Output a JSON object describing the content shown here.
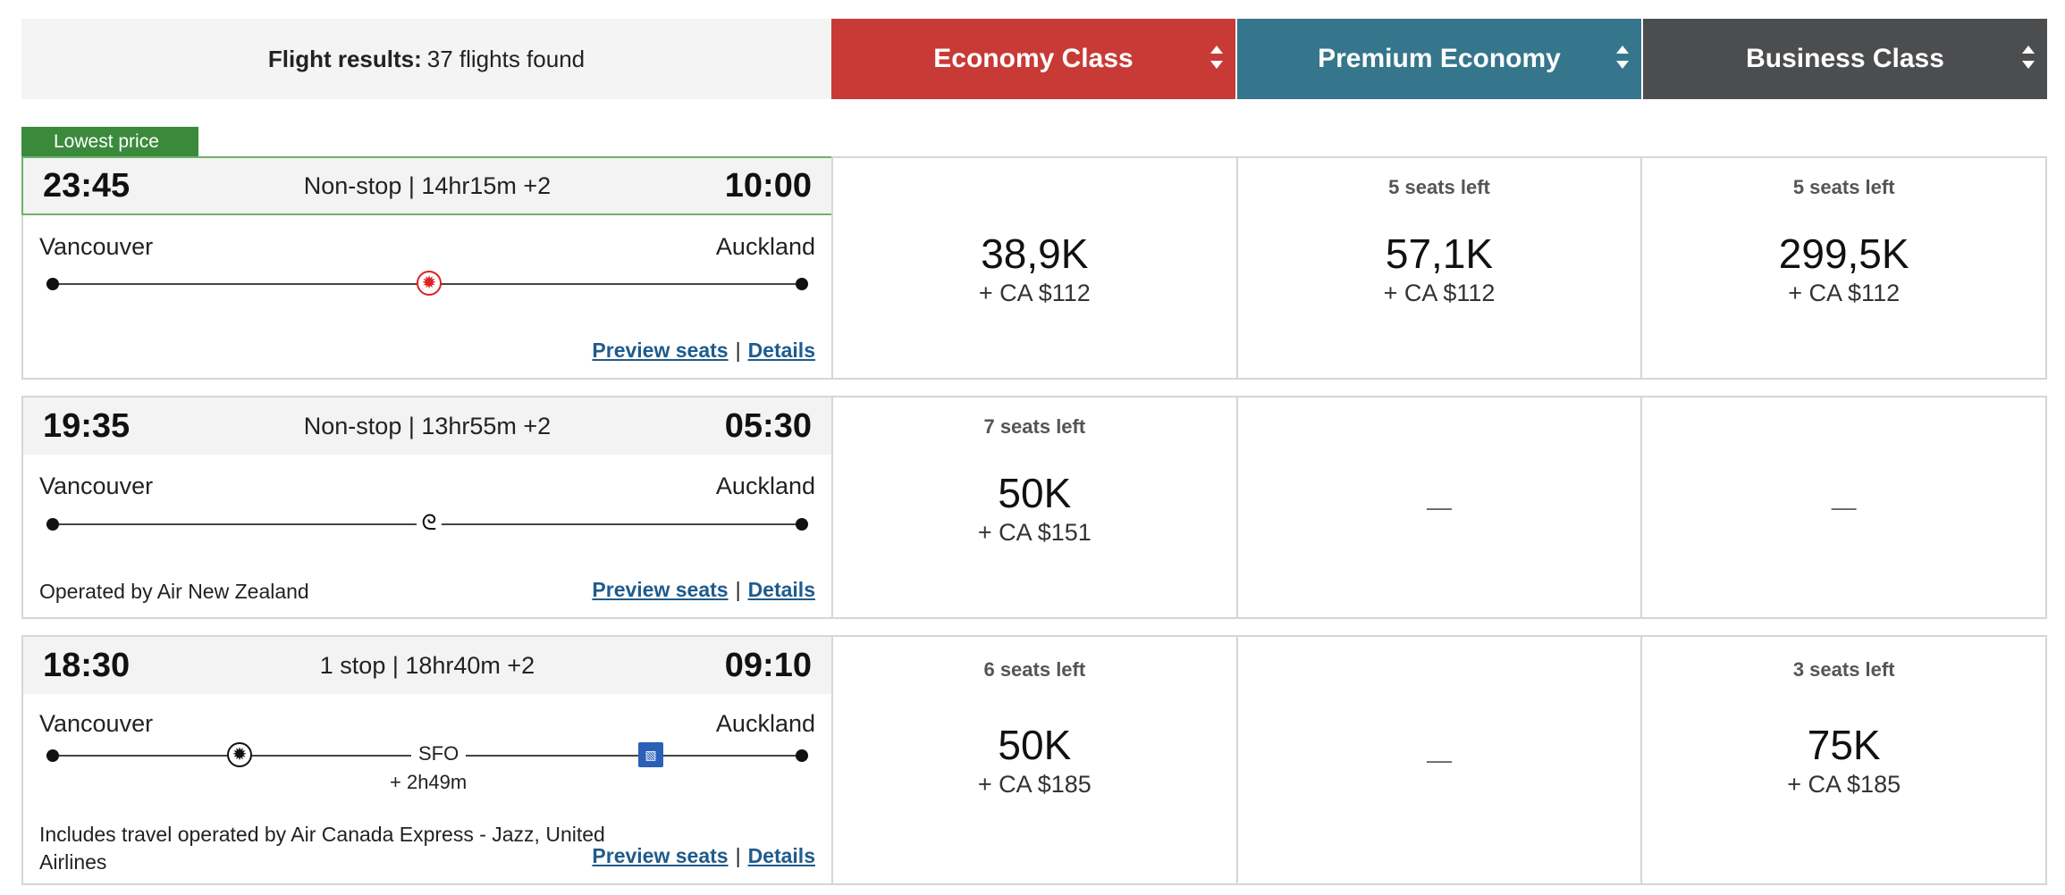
{
  "header": {
    "results_label": "Flight results:",
    "results_count": "37 flights found",
    "cabins": [
      {
        "label": "Economy Class",
        "color": "#c83a36"
      },
      {
        "label": "Premium Economy",
        "color": "#36768c"
      },
      {
        "label": "Business Class",
        "color": "#4c4d4f"
      }
    ]
  },
  "lowest_price_tag": "Lowest price",
  "links": {
    "preview": "Preview seats",
    "sep": "|",
    "details": "Details"
  },
  "flights": [
    {
      "depart": "23:45",
      "summary": "Non-stop | 14hr15m +2",
      "arrive": "10:00",
      "origin": "Vancouver",
      "destination": "Auckland",
      "operated_by": "",
      "fares": [
        {
          "seats": "",
          "price": "38,9K",
          "tax": "+ CA $112"
        },
        {
          "seats": "5 seats left",
          "price": "57,1K",
          "tax": "+ CA $112"
        },
        {
          "seats": "5 seats left",
          "price": "299,5K",
          "tax": "+ CA $112"
        }
      ]
    },
    {
      "depart": "19:35",
      "summary": "Non-stop | 13hr55m +2",
      "arrive": "05:30",
      "origin": "Vancouver",
      "destination": "Auckland",
      "operated_by": "Operated by Air New Zealand",
      "fares": [
        {
          "seats": "7 seats left",
          "price": "50K",
          "tax": "+ CA $151"
        },
        {
          "dash": "—"
        },
        {
          "dash": "—"
        }
      ]
    },
    {
      "depart": "18:30",
      "summary": "1 stop | 18hr40m +2",
      "arrive": "09:10",
      "origin": "Vancouver",
      "destination": "Auckland",
      "stop_airport": "SFO",
      "stop_layover": "+ 2h49m",
      "operated_by": "Includes travel operated by Air Canada Express - Jazz, United Airlines",
      "fares": [
        {
          "seats": "6 seats left",
          "price": "50K",
          "tax": "+ CA $185"
        },
        {
          "dash": "—"
        },
        {
          "seats": "3 seats left",
          "price": "75K",
          "tax": "+ CA $185"
        }
      ]
    }
  ],
  "icons": {
    "air_canada": "maple-leaf-icon",
    "air_new_zealand": "koru-icon",
    "air_canada_express": "maple-leaf-icon",
    "united": "united-globe-icon"
  }
}
